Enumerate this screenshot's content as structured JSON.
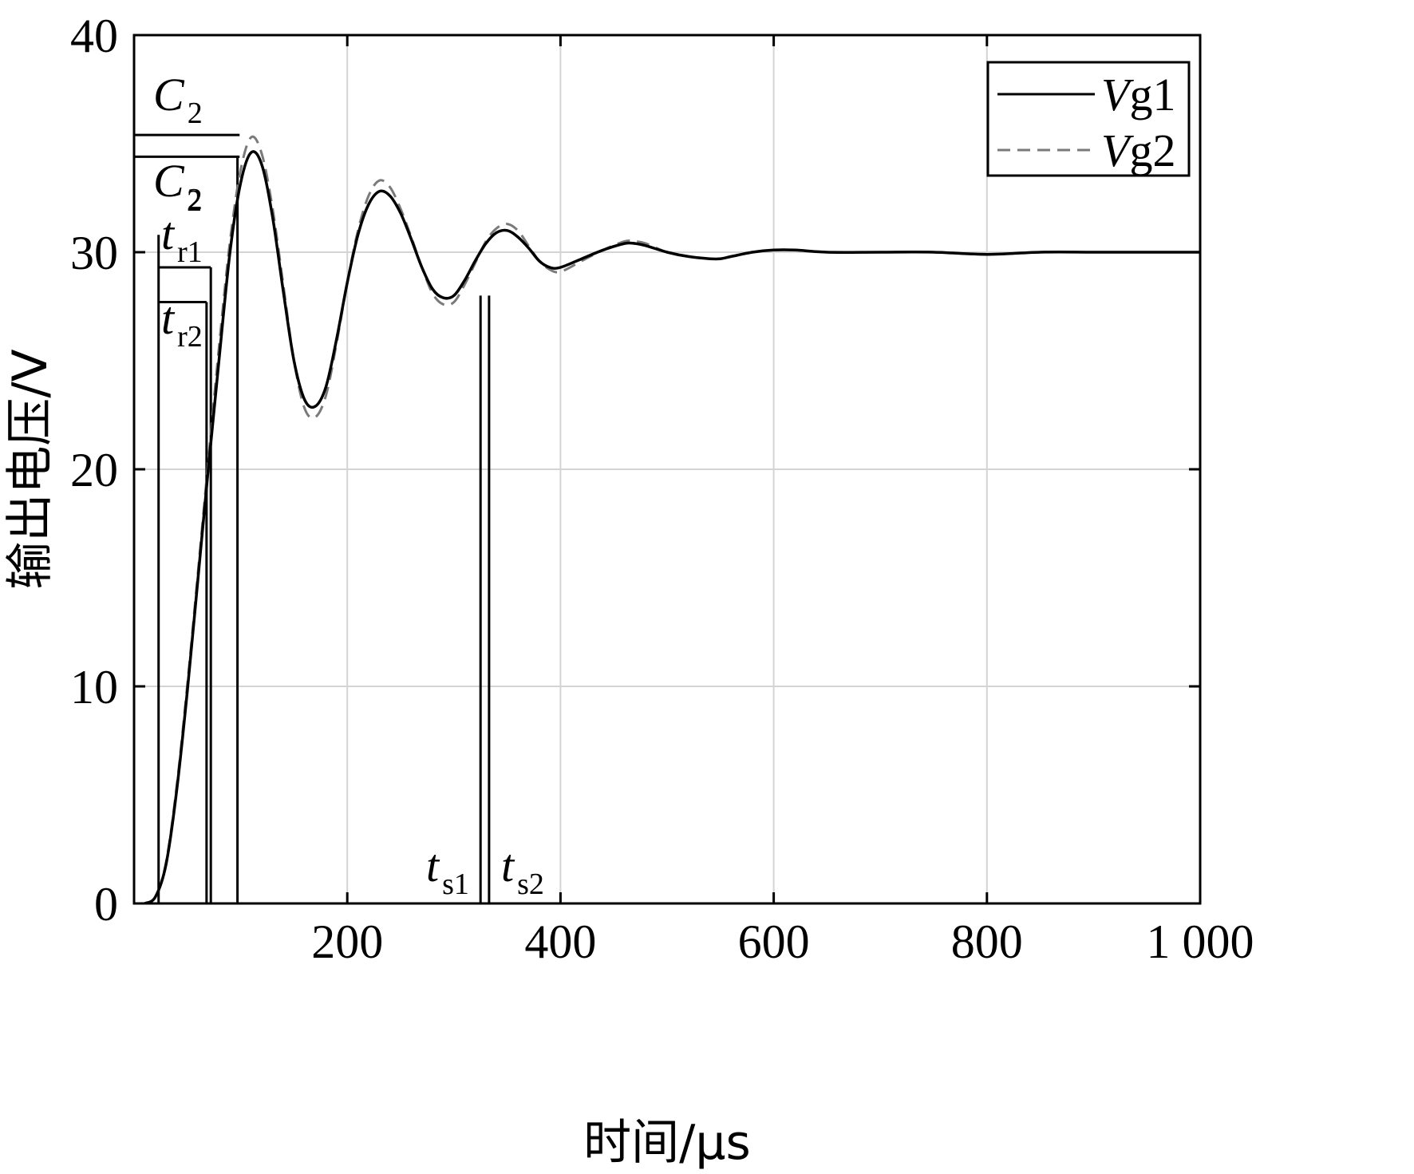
{
  "chart_data": {
    "type": "line",
    "xlabel": "时间/μs",
    "ylabel": "输出电压/V",
    "xlim": [
      0,
      1000
    ],
    "ylim": [
      0,
      40
    ],
    "xticks": [
      200,
      400,
      600,
      800,
      1000
    ],
    "xtick_labels": [
      "200",
      "400",
      "600",
      "800",
      "1 000"
    ],
    "yticks": [
      0,
      10,
      20,
      30,
      40
    ],
    "ytick_labels": [
      "0",
      "10",
      "20",
      "30",
      "40"
    ],
    "grid": true,
    "legend_position": "top-right",
    "series": [
      {
        "name": "Vg1",
        "legend_italic": "V",
        "legend_rest": "g1",
        "style": "solid",
        "color": "#000000",
        "x": [
          10,
          20,
          30,
          40,
          50,
          60,
          70,
          80,
          90,
          100,
          110,
          120,
          130,
          140,
          150,
          160,
          170,
          180,
          190,
          200,
          210,
          220,
          230,
          240,
          250,
          260,
          270,
          280,
          290,
          300,
          310,
          320,
          330,
          340,
          350,
          360,
          370,
          380,
          390,
          400,
          420,
          440,
          460,
          470,
          480,
          500,
          520,
          540,
          550,
          560,
          580,
          600,
          620,
          650,
          700,
          750,
          800,
          850,
          900,
          950,
          1000
        ],
        "y": [
          0,
          0.3,
          1.8,
          5.2,
          9.8,
          15.0,
          20.2,
          25.2,
          30.0,
          33.2,
          34.6,
          34.0,
          31.6,
          28.2,
          25.0,
          23.2,
          22.9,
          23.8,
          26.0,
          28.6,
          30.8,
          32.2,
          32.8,
          32.6,
          31.8,
          30.6,
          29.3,
          28.3,
          27.9,
          28.0,
          28.7,
          29.6,
          30.4,
          30.9,
          31.0,
          30.7,
          30.2,
          29.6,
          29.3,
          29.3,
          29.7,
          30.1,
          30.4,
          30.4,
          30.3,
          30.0,
          29.8,
          29.7,
          29.7,
          29.8,
          30.0,
          30.1,
          30.1,
          30.0,
          30.0,
          30.0,
          29.9,
          30.0,
          30.0,
          30.0,
          30.0
        ]
      },
      {
        "name": "Vg2",
        "legend_italic": "V",
        "legend_rest": "g2",
        "style": "dashed",
        "color": "#7a7a7a",
        "x": [
          10,
          20,
          30,
          40,
          50,
          60,
          70,
          80,
          90,
          100,
          110,
          120,
          130,
          140,
          150,
          160,
          170,
          180,
          190,
          200,
          210,
          220,
          230,
          240,
          250,
          260,
          270,
          280,
          290,
          300,
          310,
          320,
          330,
          340,
          350,
          360,
          370,
          380,
          390,
          400,
          420,
          440,
          460,
          470,
          480,
          500,
          520,
          540,
          550,
          560,
          580,
          600,
          620,
          650,
          700,
          750,
          800,
          850,
          900,
          950,
          1000
        ],
        "y": [
          0,
          0.3,
          1.9,
          5.4,
          10.1,
          15.3,
          20.6,
          25.8,
          30.5,
          33.8,
          35.3,
          34.5,
          32.0,
          28.5,
          25.0,
          22.8,
          22.4,
          23.4,
          25.8,
          28.6,
          31.0,
          32.6,
          33.3,
          33.0,
          32.0,
          30.7,
          29.3,
          28.1,
          27.6,
          27.7,
          28.5,
          29.5,
          30.5,
          31.1,
          31.3,
          31.0,
          30.3,
          29.6,
          29.2,
          29.1,
          29.6,
          30.1,
          30.5,
          30.5,
          30.4,
          30.0,
          29.8,
          29.7,
          29.7,
          29.8,
          30.0,
          30.1,
          30.1,
          30.0,
          30.0,
          30.0,
          29.9,
          30.0,
          30.0,
          30.0,
          30.0
        ]
      }
    ],
    "annotations": {
      "c2_level_1": 35.4,
      "c2_level_2": 34.4,
      "tr_level_1": 29.3,
      "tr_level_2": 27.7,
      "tr_start_x": 23,
      "tr_end_x1": 68,
      "tr_end_x2": 72,
      "peak_x": 97,
      "ts_x1": 325,
      "ts_x2": 333,
      "ts_level": 28.0,
      "c2_label_top": {
        "main": "C",
        "sub": "2"
      },
      "c2_label_bottom": {
        "main": "C",
        "sub": "2"
      },
      "tr_sup": "2",
      "tr1_label": {
        "main": "t",
        "sub": "r1"
      },
      "tr2_label": {
        "main": "t",
        "sub": "r2"
      },
      "ts1_label": {
        "main": "t",
        "sub": "s1"
      },
      "ts2_label": {
        "main": "t",
        "sub": "s2"
      }
    }
  }
}
